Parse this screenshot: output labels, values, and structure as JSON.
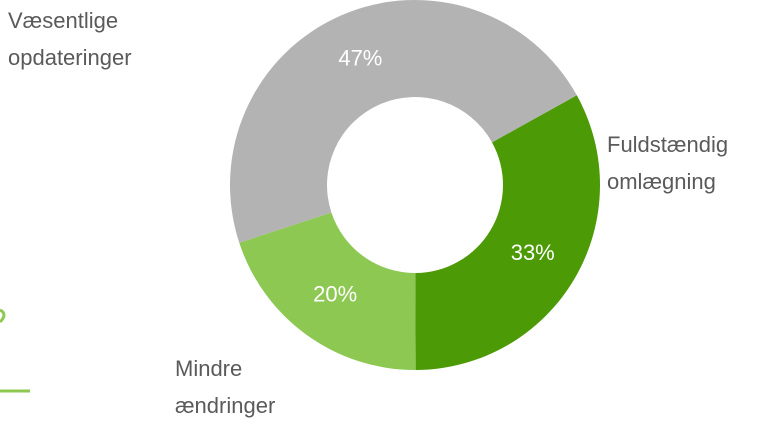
{
  "chart_data": {
    "type": "donut",
    "categories": [
      "Fuldstændig omlægning",
      "Mindre ændringer",
      "Væsentlige opdateringer"
    ],
    "values": [
      33,
      20,
      47
    ],
    "value_labels": [
      "33%",
      "20%",
      "47%"
    ],
    "colors": [
      "#4b9a06",
      "#8dc853",
      "#b3b3b3"
    ]
  }
}
